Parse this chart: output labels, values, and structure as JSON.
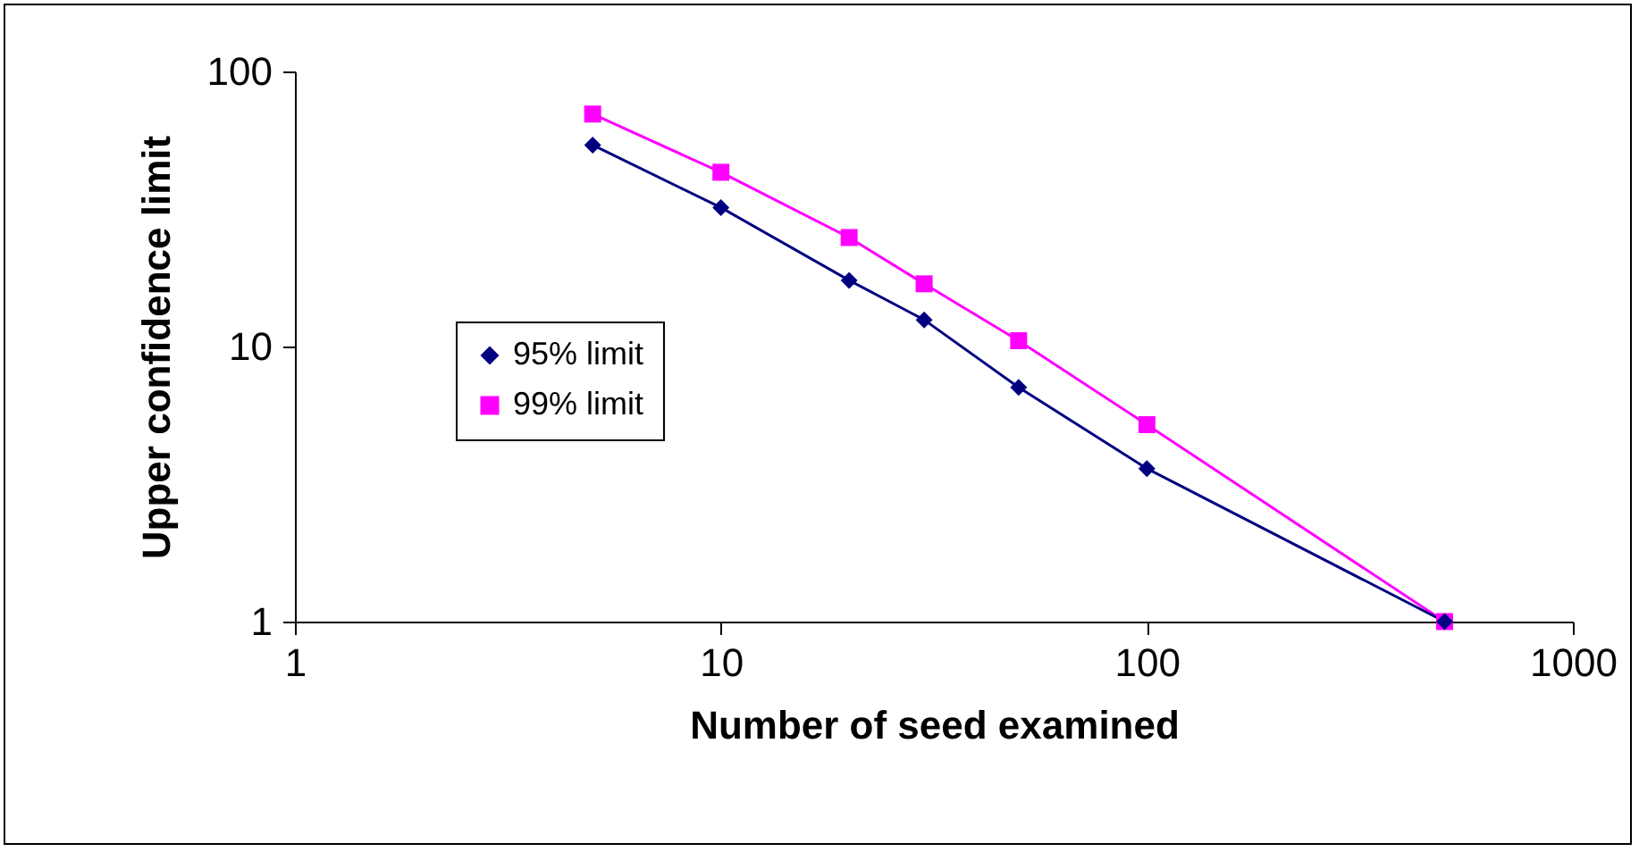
{
  "chart_data": {
    "type": "line",
    "xlabel": "Number of seed examined",
    "ylabel": "Upper confidence limit",
    "x": [
      5,
      10,
      20,
      30,
      50,
      100,
      500
    ],
    "log": "xy",
    "xlim": [
      1,
      1000
    ],
    "xticks": [
      1,
      10,
      100,
      1000
    ],
    "ylim": [
      1,
      100
    ],
    "yticks": [
      1,
      10,
      100
    ],
    "grid": false,
    "legend": "left",
    "series": [
      {
        "name": "95% limit",
        "color": "#000080",
        "marker": "diamond",
        "values": [
          54,
          32,
          17.4,
          12.5,
          7.1,
          3.6,
          1
        ]
      },
      {
        "name": "99% limit",
        "color": "#ff00ff",
        "marker": "square",
        "values": [
          70,
          43,
          24.9,
          16.9,
          10.5,
          5.2,
          1
        ]
      }
    ]
  }
}
